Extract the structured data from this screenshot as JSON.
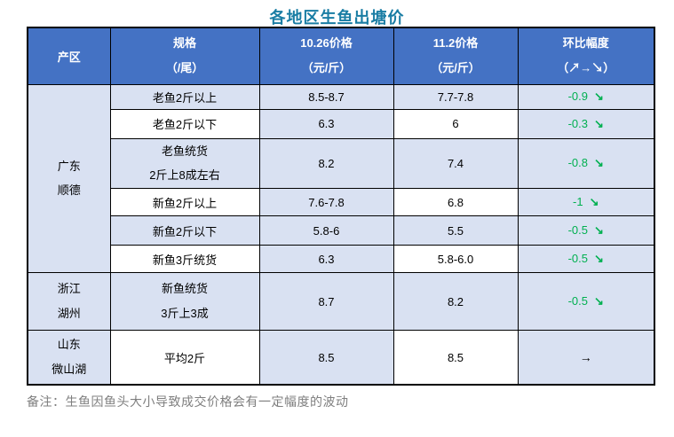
{
  "title": "各地区生鱼出塘价",
  "note": "备注：生鱼因鱼头大小导致成交价格会有一定幅度的波动",
  "colors": {
    "header_bg": "#4472C4",
    "header_text": "#FFFFFF",
    "cell_light_blue": "#D9E1F2",
    "cell_white": "#FFFFFF",
    "border": "#000000",
    "title_color": "#1A7DA4",
    "decline_green": "#00B050",
    "flat_arrow_black": "#000000",
    "note_gray": "#7F7F7F"
  },
  "table": {
    "headers": [
      {
        "line1": "产区",
        "line2": ""
      },
      {
        "line1": "规格",
        "line2": "（/尾）"
      },
      {
        "line1": "10.26价格",
        "line2": "（元/斤）"
      },
      {
        "line1": "11.2价格",
        "line2": "（元/斤）"
      },
      {
        "line1": "环比幅度",
        "line2": "（↗→↘）"
      }
    ],
    "regions": [
      {
        "line1": "广东",
        "line2": "顺德"
      },
      {
        "line1": "浙江",
        "line2": "湖州"
      },
      {
        "line1": "山东",
        "line2": "微山湖"
      }
    ],
    "rows": [
      {
        "spec1": "老鱼2斤以上",
        "spec2": "",
        "price_1026": "8.5-8.7",
        "price_112": "7.7-7.8",
        "change": "-0.9",
        "arrow": "↘"
      },
      {
        "spec1": "老鱼2斤以下",
        "spec2": "",
        "price_1026": "6.3",
        "price_112": "6",
        "change": "-0.3",
        "arrow": "↘"
      },
      {
        "spec1": "老鱼统货",
        "spec2": "2斤上8成左右",
        "price_1026": "8.2",
        "price_112": "7.4",
        "change": "-0.8",
        "arrow": "↘"
      },
      {
        "spec1": "新鱼2斤以上",
        "spec2": "",
        "price_1026": "7.6-7.8",
        "price_112": "6.8",
        "change": "-1",
        "arrow": "↘"
      },
      {
        "spec1": "新鱼2斤以下",
        "spec2": "",
        "price_1026": "5.8-6",
        "price_112": "5.5",
        "change": "-0.5",
        "arrow": "↘"
      },
      {
        "spec1": "新鱼3斤统货",
        "spec2": "",
        "price_1026": "6.3",
        "price_112": "5.8-6.0",
        "change": "-0.5",
        "arrow": "↘"
      },
      {
        "spec1": "新鱼统货",
        "spec2": "3斤上3成",
        "price_1026": "8.7",
        "price_112": "8.2",
        "change": "-0.5",
        "arrow": "↘"
      },
      {
        "spec1": "平均2斤",
        "spec2": "",
        "price_1026": "8.5",
        "price_112": "8.5",
        "change": "",
        "arrow": "→"
      }
    ]
  }
}
